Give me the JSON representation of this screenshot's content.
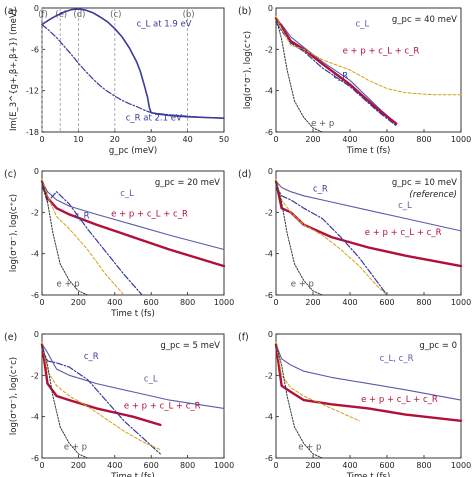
{
  "panels": [
    {
      "id": "a",
      "label": "(a)"
    },
    {
      "id": "b",
      "label": "(b)",
      "annotation": "g_pc = 40 meV",
      "curve_labels": [
        "c_L",
        "e + p + c_L + c_R",
        "c_R",
        "e + p"
      ]
    },
    {
      "id": "c",
      "label": "(c)",
      "annotation": "g_pc = 20 meV",
      "curve_labels": [
        "c_L",
        "e + p + c_L + c_R",
        "c_R",
        "e + p"
      ]
    },
    {
      "id": "d",
      "label": "(d)",
      "annotation": "g_pc = 10 meV",
      "note": "(reference)",
      "curve_labels": [
        "c_R",
        "c_L",
        "e + p + c_L + c_R",
        "e + p"
      ]
    },
    {
      "id": "e",
      "label": "(e)",
      "annotation": "g_pc = 5 meV",
      "curve_labels": [
        "c_R",
        "c_L",
        "e + p + c_L + c_R",
        "e + p"
      ]
    },
    {
      "id": "f",
      "label": "(f)",
      "annotation": "g_pc = 0",
      "curve_labels": [
        "c_L, c_R",
        "e + p + c_L + c_R",
        "e + p"
      ]
    }
  ],
  "chart_data": [
    {
      "panel": "(a)",
      "type": "line",
      "xlabel": "g_pc (meV)",
      "ylabel": "Im(E_3^{g+,β+,β+}) (meV)",
      "xlim": [
        0,
        50
      ],
      "ylim": [
        -18,
        0
      ],
      "xticks": [
        0,
        10,
        20,
        30,
        40,
        50
      ],
      "yticks": [
        0,
        -6,
        -12,
        -18
      ],
      "vlines": [
        {
          "x": 0,
          "label": "(f)"
        },
        {
          "x": 5,
          "label": "(e)"
        },
        {
          "x": 10,
          "label": "(d)"
        },
        {
          "x": 20,
          "label": "(c)"
        },
        {
          "x": 40,
          "label": "(b)"
        }
      ],
      "series": [
        {
          "name": "c_L at 1.9 eV",
          "style": "solid",
          "color": "#3a3a9e",
          "x": [
            0,
            2,
            4,
            6,
            8,
            10,
            12,
            14,
            16,
            18,
            20,
            22,
            24,
            26,
            27,
            28,
            29,
            29.5,
            30,
            32,
            35,
            40,
            45,
            50
          ],
          "y": [
            -2.4,
            -1.7,
            -1.1,
            -0.6,
            -0.25,
            -0.15,
            -0.3,
            -0.7,
            -1.3,
            -2.0,
            -3.0,
            -4.2,
            -5.8,
            -7.8,
            -9.2,
            -11.0,
            -13.0,
            -14.5,
            -15.2,
            -15.4,
            -15.6,
            -15.8,
            -15.9,
            -16.0
          ]
        },
        {
          "name": "c_R at 2.1 eV",
          "style": "dashdot",
          "color": "#3a3a9e",
          "x": [
            0,
            2,
            4,
            6,
            8,
            10,
            12,
            14,
            16,
            18,
            20,
            22,
            24,
            26,
            28,
            29,
            30,
            35,
            40,
            45,
            50
          ],
          "y": [
            -2.4,
            -3.3,
            -4.3,
            -5.5,
            -6.7,
            -8.0,
            -9.2,
            -10.3,
            -11.3,
            -12.1,
            -12.8,
            -13.4,
            -13.9,
            -14.3,
            -14.8,
            -15.0,
            -15.2,
            -15.5,
            -15.7,
            -15.9,
            -16.0
          ]
        }
      ]
    },
    {
      "panel": "(b)",
      "type": "line",
      "xlabel": "Time t (fs)",
      "ylabel": "log(σ⁺σ⁻), log(c⁺c)",
      "xlim": [
        0,
        1000
      ],
      "ylim": [
        -6,
        0
      ],
      "xticks": [
        0,
        200,
        400,
        600,
        800,
        1000
      ],
      "yticks": [
        0,
        -2,
        -4,
        -6
      ],
      "series": [
        {
          "name": "c_L",
          "style": "solid-thin",
          "color": "#5a5aa8",
          "x": [
            0,
            30,
            80,
            150,
            250,
            400,
            550,
            650
          ],
          "y": [
            -0.6,
            -0.8,
            -1.4,
            -1.9,
            -2.6,
            -3.5,
            -4.8,
            -5.6
          ]
        },
        {
          "name": "e + p + c_L + c_R",
          "style": "solid-thick",
          "color": "#b0103a",
          "x": [
            0,
            30,
            80,
            150,
            250,
            400,
            550,
            650
          ],
          "y": [
            -0.5,
            -0.9,
            -1.6,
            -2.0,
            -2.7,
            -3.7,
            -4.9,
            -5.6
          ]
        },
        {
          "name": "c_R",
          "style": "dashdot",
          "color": "#3a3a9e",
          "x": [
            0,
            30,
            80,
            150,
            250,
            400,
            550,
            650
          ],
          "y": [
            -0.7,
            -1.1,
            -1.7,
            -2.1,
            -2.9,
            -3.8,
            -5.0,
            -5.7
          ]
        },
        {
          "name": "e",
          "style": "dashed",
          "color": "#d4a017",
          "x": [
            0,
            30,
            80,
            150,
            250,
            400,
            500,
            600,
            700,
            850,
            1000
          ],
          "y": [
            -0.4,
            -1.0,
            -1.8,
            -2.0,
            -2.5,
            -3.0,
            -3.5,
            -3.9,
            -4.1,
            -4.2,
            -4.2
          ]
        },
        {
          "name": "p",
          "style": "dotted",
          "color": "#333333",
          "x": [
            0,
            30,
            60,
            100,
            150,
            200,
            250
          ],
          "y": [
            -0.5,
            -1.5,
            -3.0,
            -4.5,
            -5.3,
            -5.8,
            -6.0
          ]
        }
      ]
    },
    {
      "panel": "(c)",
      "type": "line",
      "xlabel": "Time t (fs)",
      "ylabel": "log(σ⁺σ⁻), log(c⁺c)",
      "xlim": [
        0,
        1000
      ],
      "ylim": [
        -6,
        0
      ],
      "xticks": [
        0,
        200,
        400,
        600,
        800,
        1000
      ],
      "yticks": [
        0,
        -2,
        -4,
        -6
      ],
      "series": [
        {
          "name": "c_L",
          "style": "solid-thin",
          "color": "#5a5aa8",
          "x": [
            0,
            30,
            80,
            150,
            300,
            500,
            700,
            1000
          ],
          "y": [
            -0.5,
            -1.0,
            -1.4,
            -1.7,
            -2.1,
            -2.6,
            -3.1,
            -3.8
          ]
        },
        {
          "name": "e + p + c_L + c_R",
          "style": "solid-thick",
          "color": "#b0103a",
          "x": [
            0,
            30,
            80,
            150,
            300,
            500,
            700,
            1000
          ],
          "y": [
            -0.5,
            -1.3,
            -1.8,
            -2.1,
            -2.6,
            -3.2,
            -3.8,
            -4.6
          ]
        },
        {
          "name": "c_R",
          "style": "dashdot",
          "color": "#3a3a9e",
          "x": [
            0,
            30,
            80,
            150,
            250,
            350,
            450,
            550
          ],
          "y": [
            -0.7,
            -1.5,
            -1.0,
            -1.6,
            -2.8,
            -3.9,
            -5.0,
            -6.0
          ]
        },
        {
          "name": "e",
          "style": "dashed",
          "color": "#d4a017",
          "x": [
            0,
            30,
            80,
            150,
            250,
            350,
            450
          ],
          "y": [
            -0.4,
            -1.2,
            -2.2,
            -2.8,
            -3.8,
            -5.0,
            -6.0
          ]
        },
        {
          "name": "p",
          "style": "dotted",
          "color": "#333333",
          "x": [
            0,
            30,
            60,
            100,
            150,
            200,
            250
          ],
          "y": [
            -0.5,
            -1.5,
            -3.0,
            -4.5,
            -5.3,
            -5.8,
            -6.0
          ]
        }
      ]
    },
    {
      "panel": "(d)",
      "type": "line",
      "xlabel": "",
      "ylabel": "",
      "xlim": [
        0,
        1000
      ],
      "ylim": [
        -6,
        0
      ],
      "xticks": [
        0,
        200,
        400,
        600,
        800,
        1000
      ],
      "yticks": [
        0,
        -2,
        -4,
        -6
      ],
      "series": [
        {
          "name": "c_L",
          "style": "solid-thin",
          "color": "#5a5aa8",
          "x": [
            0,
            30,
            80,
            150,
            300,
            500,
            700,
            1000
          ],
          "y": [
            -0.5,
            -0.8,
            -1.0,
            -1.2,
            -1.5,
            -1.9,
            -2.3,
            -2.9
          ]
        },
        {
          "name": "e + p + c_L + c_R",
          "style": "solid-thick",
          "color": "#b0103a",
          "x": [
            0,
            30,
            80,
            150,
            300,
            500,
            700,
            1000
          ],
          "y": [
            -0.5,
            -1.8,
            -2.0,
            -2.6,
            -3.2,
            -3.7,
            -4.1,
            -4.6
          ]
        },
        {
          "name": "c_R",
          "style": "dashdot",
          "color": "#3a3a9e",
          "x": [
            0,
            30,
            80,
            150,
            250,
            350,
            450,
            550,
            600
          ],
          "y": [
            -0.7,
            -1.2,
            -1.4,
            -1.8,
            -2.3,
            -3.2,
            -4.2,
            -5.4,
            -6.0
          ]
        },
        {
          "name": "e",
          "style": "dashed",
          "color": "#d4a017",
          "x": [
            0,
            30,
            80,
            150,
            250,
            350,
            450,
            550,
            600
          ],
          "y": [
            -0.4,
            -1.4,
            -2.0,
            -2.6,
            -3.1,
            -3.8,
            -4.6,
            -5.6,
            -6.0
          ]
        },
        {
          "name": "p",
          "style": "dotted",
          "color": "#333333",
          "x": [
            0,
            30,
            60,
            100,
            150,
            200,
            250
          ],
          "y": [
            -0.5,
            -1.5,
            -3.0,
            -4.5,
            -5.3,
            -5.8,
            -6.0
          ]
        }
      ]
    },
    {
      "panel": "(e)",
      "type": "line",
      "xlabel": "Time t (fs)",
      "ylabel": "log(σ⁺σ⁻), log(c⁺c)",
      "xlim": [
        0,
        1000
      ],
      "ylim": [
        -6,
        0
      ],
      "xticks": [
        0,
        200,
        400,
        600,
        800,
        1000
      ],
      "yticks": [
        0,
        -2,
        -4,
        -6
      ],
      "series": [
        {
          "name": "c_L",
          "style": "solid-thin",
          "color": "#5a5aa8",
          "x": [
            0,
            30,
            80,
            150,
            300,
            500,
            700,
            1000
          ],
          "y": [
            -0.5,
            -0.9,
            -1.7,
            -2.0,
            -2.4,
            -2.8,
            -3.2,
            -3.6
          ]
        },
        {
          "name": "e + p + c_L + c_R",
          "style": "solid-thick",
          "color": "#b0103a",
          "x": [
            0,
            30,
            80,
            150,
            300,
            500,
            650
          ],
          "y": [
            -0.5,
            -2.4,
            -3.0,
            -3.2,
            -3.6,
            -4.0,
            -4.4
          ]
        },
        {
          "name": "c_R",
          "style": "dashdot",
          "color": "#3a3a9e",
          "x": [
            0,
            30,
            80,
            150,
            250,
            350,
            450,
            550,
            650
          ],
          "y": [
            -0.7,
            -1.3,
            -1.4,
            -1.6,
            -2.2,
            -3.2,
            -4.2,
            -5.0,
            -5.8
          ]
        },
        {
          "name": "e",
          "style": "dashed",
          "color": "#d4a017",
          "x": [
            0,
            30,
            80,
            150,
            250,
            350,
            450,
            550,
            650
          ],
          "y": [
            -0.4,
            -1.8,
            -2.5,
            -3.0,
            -3.5,
            -4.1,
            -4.7,
            -5.2,
            -5.6
          ]
        },
        {
          "name": "p",
          "style": "dotted",
          "color": "#333333",
          "x": [
            0,
            30,
            60,
            100,
            150,
            200,
            250
          ],
          "y": [
            -0.5,
            -1.5,
            -3.0,
            -4.5,
            -5.3,
            -5.8,
            -6.0
          ]
        }
      ]
    },
    {
      "panel": "(f)",
      "type": "line",
      "xlabel": "Time t (fs)",
      "ylabel": "",
      "xlim": [
        0,
        1000
      ],
      "ylim": [
        -6,
        0
      ],
      "xticks": [
        0,
        200,
        400,
        600,
        800,
        1000
      ],
      "yticks": [
        0,
        -2,
        -4,
        -6
      ],
      "series": [
        {
          "name": "c_L, c_R",
          "style": "solid-thin",
          "color": "#5a5aa8",
          "x": [
            0,
            30,
            80,
            150,
            300,
            500,
            700,
            1000
          ],
          "y": [
            -0.5,
            -1.2,
            -1.5,
            -1.8,
            -2.1,
            -2.4,
            -2.7,
            -3.2
          ]
        },
        {
          "name": "e + p + c_L + c_R",
          "style": "solid-thick",
          "color": "#b0103a",
          "x": [
            0,
            30,
            80,
            150,
            300,
            500,
            700,
            1000
          ],
          "y": [
            -0.5,
            -2.5,
            -2.8,
            -3.2,
            -3.4,
            -3.6,
            -3.9,
            -4.2
          ]
        },
        {
          "name": "e",
          "style": "dashed",
          "color": "#d4a017",
          "x": [
            0,
            30,
            80,
            150,
            300,
            450
          ],
          "y": [
            -0.4,
            -2.0,
            -2.6,
            -3.0,
            -3.6,
            -4.2
          ]
        },
        {
          "name": "p",
          "style": "dotted",
          "color": "#333333",
          "x": [
            0,
            30,
            60,
            100,
            150,
            200,
            250
          ],
          "y": [
            -0.5,
            -1.5,
            -3.0,
            -4.5,
            -5.3,
            -5.8,
            -6.0
          ]
        }
      ]
    }
  ]
}
